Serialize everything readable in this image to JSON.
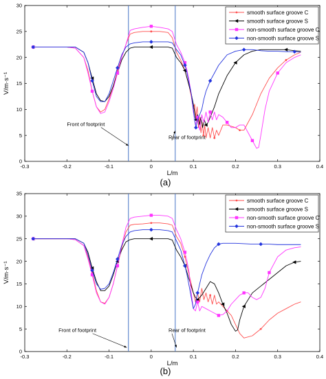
{
  "chart_data": [
    {
      "type": "line",
      "panel_label": "(a)",
      "xlabel": "L/m",
      "ylabel": "V/m·s⁻¹",
      "xlim": [
        -0.3,
        0.4
      ],
      "ylim": [
        0,
        30
      ],
      "xticks": [
        -0.3,
        -0.2,
        -0.1,
        0,
        0.1,
        0.2,
        0.3,
        0.4
      ],
      "yticks": [
        0,
        5,
        10,
        15,
        20,
        25,
        30
      ],
      "xtick_labels": [
        "-0.3",
        "-0.2",
        "-0.1",
        "0",
        "0.1",
        "0.2",
        "0.3",
        "0.4"
      ],
      "ytick_labels": [
        "0",
        "5",
        "10",
        "15",
        "20",
        "25",
        "30"
      ],
      "grid": false,
      "legend_position": "top-right",
      "vlines": [
        {
          "x": -0.054,
          "color": "#4472c4"
        },
        {
          "x": 0.057,
          "color": "#4472c4"
        }
      ],
      "annotations": [
        {
          "text": "Front of footprint",
          "x": -0.155,
          "y": 6.8,
          "arrow_to": [
            -0.054,
            3.0
          ],
          "anchor": "end"
        },
        {
          "text": "Rear of footprint",
          "x": 0.085,
          "y": 4.3,
          "arrow_to": [
            0.057,
            5.9
          ],
          "anchor": "start"
        }
      ],
      "series": [
        {
          "name": "smooth surface groove C",
          "color": "#ff4d4d",
          "marker": "dot",
          "markevery": 6,
          "x": [
            -0.28,
            -0.24,
            -0.2,
            -0.18,
            -0.16,
            -0.15,
            -0.14,
            -0.13,
            -0.12,
            -0.11,
            -0.1,
            -0.09,
            -0.08,
            -0.07,
            -0.06,
            -0.05,
            -0.04,
            -0.02,
            0,
            0.02,
            0.04,
            0.05,
            0.06,
            0.07,
            0.08,
            0.085,
            0.09,
            0.095,
            0.1,
            0.103,
            0.106,
            0.109,
            0.112,
            0.115,
            0.118,
            0.121,
            0.124,
            0.127,
            0.13,
            0.135,
            0.14,
            0.145,
            0.15,
            0.155,
            0.16,
            0.17,
            0.18,
            0.2,
            0.21,
            0.22,
            0.24,
            0.26,
            0.28,
            0.3,
            0.32,
            0.34,
            0.355
          ],
          "y": [
            22,
            22,
            22,
            21.8,
            20,
            17.5,
            13.5,
            10.5,
            9.5,
            10,
            12,
            14.5,
            17.5,
            20,
            22.5,
            24.5,
            24.8,
            25,
            25,
            25,
            24.8,
            23.8,
            21,
            19.5,
            17.5,
            16,
            14.5,
            12.5,
            10,
            11,
            8.5,
            10.5,
            6.5,
            8.5,
            5.5,
            7.5,
            5,
            7,
            4.5,
            6.5,
            4.5,
            6.5,
            4.5,
            6,
            5,
            7,
            7,
            6.5,
            6,
            6,
            9,
            13,
            16,
            18,
            19.5,
            20.5,
            21
          ]
        },
        {
          "name": "smooth surface groove S",
          "color": "#000000",
          "marker": "tri-left",
          "markevery": 6,
          "x": [
            -0.28,
            -0.24,
            -0.2,
            -0.18,
            -0.16,
            -0.15,
            -0.14,
            -0.13,
            -0.12,
            -0.11,
            -0.1,
            -0.09,
            -0.08,
            -0.07,
            -0.06,
            -0.05,
            -0.04,
            -0.02,
            0,
            0.02,
            0.04,
            0.05,
            0.06,
            0.07,
            0.08,
            0.085,
            0.09,
            0.095,
            0.1,
            0.103,
            0.106,
            0.11,
            0.114,
            0.118,
            0.122,
            0.126,
            0.13,
            0.135,
            0.14,
            0.15,
            0.16,
            0.18,
            0.2,
            0.22,
            0.24,
            0.26,
            0.28,
            0.3,
            0.32,
            0.34,
            0.355
          ],
          "y": [
            22,
            22,
            22,
            22,
            21,
            19,
            16,
            13,
            11.7,
            11.5,
            12.5,
            14.5,
            17,
            19.5,
            21,
            21.8,
            22,
            22,
            22,
            22,
            22,
            21.8,
            20,
            19,
            17.5,
            16,
            14.5,
            13,
            11,
            9.5,
            8,
            9,
            7,
            8.5,
            6.5,
            8,
            7,
            7.5,
            8.5,
            10.5,
            13,
            16.5,
            19,
            20.5,
            21.2,
            21.5,
            21.5,
            21.5,
            21.5,
            21.3,
            21.2
          ]
        },
        {
          "name": "non-smooth surface groove C",
          "color": "#ff33ff",
          "marker": "square",
          "markevery": 6,
          "x": [
            -0.28,
            -0.24,
            -0.2,
            -0.18,
            -0.16,
            -0.15,
            -0.14,
            -0.13,
            -0.12,
            -0.11,
            -0.1,
            -0.09,
            -0.08,
            -0.07,
            -0.06,
            -0.05,
            -0.04,
            -0.02,
            0,
            0.02,
            0.04,
            0.05,
            0.06,
            0.07,
            0.08,
            0.085,
            0.09,
            0.095,
            0.1,
            0.105,
            0.11,
            0.115,
            0.12,
            0.125,
            0.13,
            0.135,
            0.14,
            0.145,
            0.15,
            0.155,
            0.16,
            0.17,
            0.18,
            0.19,
            0.2,
            0.21,
            0.22,
            0.23,
            0.24,
            0.25,
            0.255,
            0.26,
            0.27,
            0.28,
            0.3,
            0.32,
            0.34,
            0.355
          ],
          "y": [
            22,
            22,
            22,
            21.8,
            20,
            17,
            13.5,
            10.5,
            9.2,
            9.5,
            11.5,
            14,
            17,
            20,
            22.5,
            25.2,
            25.5,
            25.8,
            26,
            25.8,
            25.5,
            25,
            22.5,
            21,
            19,
            17.5,
            15.5,
            13,
            9.5,
            7,
            8.5,
            6,
            9,
            7.5,
            9.5,
            7.5,
            9.5,
            8,
            9.5,
            8,
            9,
            8.5,
            7.5,
            6.5,
            6.5,
            7,
            7,
            5.5,
            4,
            2.5,
            2.7,
            5,
            10,
            13.5,
            17,
            19,
            20,
            20.5
          ]
        },
        {
          "name": "non-smooth surface groove S",
          "color": "#2233dd",
          "marker": "diamond",
          "markevery": 6,
          "x": [
            -0.28,
            -0.24,
            -0.2,
            -0.18,
            -0.16,
            -0.15,
            -0.14,
            -0.13,
            -0.12,
            -0.11,
            -0.1,
            -0.09,
            -0.08,
            -0.07,
            -0.06,
            -0.05,
            -0.04,
            -0.02,
            0,
            0.02,
            0.04,
            0.05,
            0.06,
            0.07,
            0.08,
            0.085,
            0.09,
            0.095,
            0.1,
            0.103,
            0.106,
            0.11,
            0.115,
            0.12,
            0.125,
            0.13,
            0.14,
            0.15,
            0.16,
            0.17,
            0.18,
            0.2,
            0.22,
            0.24,
            0.26,
            0.28,
            0.3,
            0.32,
            0.34,
            0.355
          ],
          "y": [
            22,
            22,
            22,
            22,
            21,
            19,
            15.5,
            12.5,
            11.5,
            11.5,
            13,
            15.5,
            18,
            20.5,
            22,
            22.6,
            22.8,
            23,
            23,
            23,
            23,
            22.8,
            21.5,
            20.5,
            18.5,
            17,
            15,
            13,
            10,
            8,
            6.5,
            8,
            9,
            10,
            12,
            13.5,
            15.5,
            17,
            18.5,
            19.5,
            20.5,
            21.2,
            21.5,
            21.5,
            21.3,
            21.2,
            21.2,
            21.1,
            21.1,
            21
          ]
        }
      ]
    },
    {
      "type": "line",
      "panel_label": "(b)",
      "xlabel": "L/m",
      "ylabel": "V/m·s⁻¹",
      "xlim": [
        -0.3,
        0.4
      ],
      "ylim": [
        0,
        35
      ],
      "xticks": [
        -0.3,
        -0.2,
        -0.1,
        0,
        0.1,
        0.2,
        0.3,
        0.4
      ],
      "yticks": [
        0,
        5,
        10,
        15,
        20,
        25,
        30,
        35
      ],
      "xtick_labels": [
        "-0.3",
        "-0.2",
        "-0.1",
        "0",
        "0.1",
        "0.2",
        "0.3",
        "0.4"
      ],
      "ytick_labels": [
        "0",
        "5",
        "10",
        "15",
        "20",
        "25",
        "30",
        "35"
      ],
      "grid": false,
      "legend_position": "top-right",
      "vlines": [
        {
          "x": -0.054,
          "color": "#4472c4"
        },
        {
          "x": 0.057,
          "color": "#4472c4"
        }
      ],
      "annotations": [
        {
          "text": "Front of footprint",
          "x": -0.175,
          "y": 4.3,
          "arrow_to": [
            -0.058,
            0.9
          ],
          "anchor": "end"
        },
        {
          "text": "Rear of footprint",
          "x": 0.085,
          "y": 4.3,
          "arrow_to": [
            0.06,
            0.9
          ],
          "anchor": "start"
        }
      ],
      "series": [
        {
          "name": "smooth surface groove C",
          "color": "#ff4d4d",
          "marker": "dot",
          "markevery": 6,
          "x": [
            -0.28,
            -0.24,
            -0.2,
            -0.18,
            -0.16,
            -0.15,
            -0.14,
            -0.13,
            -0.12,
            -0.11,
            -0.1,
            -0.09,
            -0.08,
            -0.07,
            -0.06,
            -0.05,
            -0.04,
            -0.02,
            0,
            0.02,
            0.04,
            0.05,
            0.06,
            0.07,
            0.08,
            0.085,
            0.09,
            0.095,
            0.1,
            0.105,
            0.11,
            0.115,
            0.12,
            0.125,
            0.13,
            0.135,
            0.14,
            0.145,
            0.15,
            0.155,
            0.16,
            0.17,
            0.18,
            0.19,
            0.2,
            0.21,
            0.22,
            0.24,
            0.26,
            0.28,
            0.3,
            0.32,
            0.34,
            0.355
          ],
          "y": [
            25,
            25,
            25,
            24.8,
            23.5,
            21,
            17.5,
            13.5,
            11,
            10.7,
            12,
            15,
            19,
            23,
            26.5,
            28,
            28.2,
            28.3,
            28.5,
            28.5,
            28.3,
            28,
            25.5,
            24,
            21,
            19,
            17,
            15,
            13,
            11,
            13,
            11,
            14,
            11.5,
            13,
            11,
            12.5,
            10.5,
            12.5,
            10.5,
            11,
            10,
            9,
            8,
            6,
            4,
            3,
            3.5,
            5,
            7,
            8.5,
            9.5,
            10.5,
            11
          ]
        },
        {
          "name": "smooth surface groove S",
          "color": "#000000",
          "marker": "tri-left",
          "markevery": 6,
          "x": [
            -0.28,
            -0.24,
            -0.2,
            -0.18,
            -0.16,
            -0.15,
            -0.14,
            -0.13,
            -0.12,
            -0.11,
            -0.1,
            -0.09,
            -0.08,
            -0.07,
            -0.06,
            -0.05,
            -0.04,
            -0.02,
            0,
            0.02,
            0.04,
            0.05,
            0.06,
            0.07,
            0.08,
            0.085,
            0.09,
            0.095,
            0.1,
            0.105,
            0.11,
            0.12,
            0.13,
            0.14,
            0.15,
            0.16,
            0.17,
            0.18,
            0.19,
            0.2,
            0.205,
            0.21,
            0.22,
            0.24,
            0.26,
            0.28,
            0.3,
            0.32,
            0.34,
            0.355
          ],
          "y": [
            25,
            25,
            25,
            25,
            24,
            22,
            18.5,
            15.5,
            13.5,
            13.5,
            14.5,
            17,
            20,
            22.5,
            24.3,
            24.8,
            25,
            25,
            25,
            25,
            25,
            24.7,
            22.5,
            21,
            19,
            17.5,
            16,
            14.5,
            13,
            12,
            11.5,
            12.5,
            14,
            15.5,
            15,
            13,
            10.5,
            8.5,
            6,
            4.5,
            4.8,
            7,
            10,
            13,
            14.5,
            16,
            17.5,
            19,
            19.8,
            20
          ]
        },
        {
          "name": "non-smooth surface groove C",
          "color": "#ff33ff",
          "marker": "square",
          "markevery": 6,
          "x": [
            -0.28,
            -0.24,
            -0.2,
            -0.18,
            -0.16,
            -0.15,
            -0.14,
            -0.13,
            -0.12,
            -0.11,
            -0.1,
            -0.09,
            -0.08,
            -0.07,
            -0.06,
            -0.05,
            -0.04,
            -0.02,
            0,
            0.02,
            0.04,
            0.05,
            0.06,
            0.07,
            0.08,
            0.085,
            0.09,
            0.095,
            0.1,
            0.105,
            0.11,
            0.115,
            0.12,
            0.13,
            0.14,
            0.15,
            0.16,
            0.17,
            0.18,
            0.19,
            0.2,
            0.21,
            0.22,
            0.23,
            0.24,
            0.25,
            0.26,
            0.27,
            0.28,
            0.3,
            0.32,
            0.34,
            0.355
          ],
          "y": [
            25,
            25,
            25,
            24.8,
            23.5,
            20.5,
            17,
            13,
            11,
            10.5,
            12,
            15,
            19,
            23.5,
            27.5,
            29.5,
            29.8,
            30,
            30.2,
            30.2,
            30,
            29.5,
            27,
            25,
            22,
            20,
            17.5,
            13,
            9.5,
            9,
            11,
            9,
            10,
            9.5,
            9,
            8.5,
            8,
            8.2,
            9,
            10.5,
            11.5,
            12.5,
            13,
            13,
            12,
            11.5,
            12,
            14,
            17.5,
            21,
            22.5,
            23,
            23.2
          ]
        },
        {
          "name": "non-smooth surface groove S",
          "color": "#2233dd",
          "marker": "diamond",
          "markevery": 6,
          "x": [
            -0.28,
            -0.24,
            -0.2,
            -0.18,
            -0.16,
            -0.15,
            -0.14,
            -0.13,
            -0.12,
            -0.11,
            -0.1,
            -0.09,
            -0.08,
            -0.07,
            -0.06,
            -0.05,
            -0.04,
            -0.02,
            0,
            0.02,
            0.04,
            0.05,
            0.06,
            0.07,
            0.08,
            0.085,
            0.09,
            0.095,
            0.1,
            0.105,
            0.11,
            0.115,
            0.12,
            0.13,
            0.14,
            0.15,
            0.16,
            0.17,
            0.18,
            0.2,
            0.22,
            0.24,
            0.26,
            0.28,
            0.3,
            0.32,
            0.34,
            0.355
          ],
          "y": [
            25,
            25,
            25,
            25,
            24,
            21.5,
            18,
            15,
            13.8,
            14,
            15,
            17.5,
            20.5,
            23.5,
            25.5,
            26.5,
            26.8,
            27,
            27,
            27,
            26.8,
            26.5,
            24.5,
            22.5,
            19,
            17,
            14.5,
            12,
            9.5,
            10.5,
            13,
            15,
            17,
            19.5,
            21.5,
            23,
            23.8,
            24,
            24,
            24,
            23.9,
            23.8,
            23.8,
            23.8,
            23.7,
            23.7,
            23.7,
            23.7
          ]
        }
      ]
    }
  ]
}
